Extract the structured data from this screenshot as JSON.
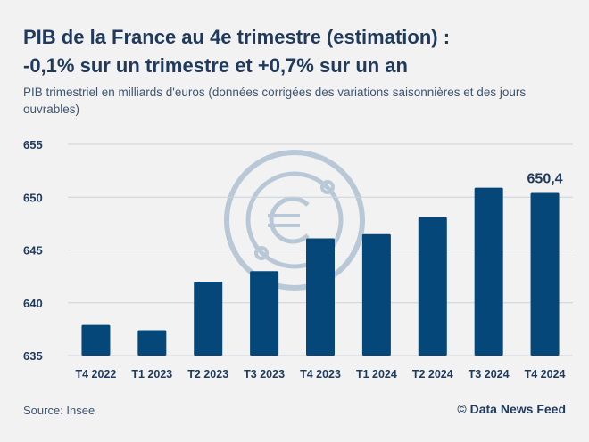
{
  "title_line1": "PIB de la France au 4e trimestre (estimation) :",
  "title_line2": "-0,1% sur un trimestre et +0,7% sur un an",
  "subtitle": "PIB trimestriel en milliards d'euros (données corrigées des variations saisonnières et des jours ouvrables)",
  "source": "Source: Insee",
  "credit": "© Data News Feed",
  "colors": {
    "bar": "#06477a",
    "grid": "#cdd3da",
    "text": "#1f3a5c",
    "watermark": "#b8c8d6"
  },
  "chart_data": {
    "type": "bar",
    "title": "",
    "xlabel": "",
    "ylabel": "",
    "categories": [
      "T4 2022",
      "T1 2023",
      "T2 2023",
      "T3 2023",
      "T4 2023",
      "T1 2024",
      "T2 2024",
      "T3 2024",
      "T4 2024"
    ],
    "values": [
      637.9,
      637.4,
      642.0,
      643.0,
      646.1,
      646.5,
      648.1,
      650.9,
      650.4
    ],
    "ylim": [
      635,
      655
    ],
    "yticks": [
      635,
      640,
      645,
      650,
      655
    ],
    "ytick_labels": [
      "635",
      "640",
      "645",
      "650",
      "655"
    ],
    "grid": true,
    "annotations": [
      {
        "category": "T4 2024",
        "text": "650,4"
      }
    ]
  }
}
